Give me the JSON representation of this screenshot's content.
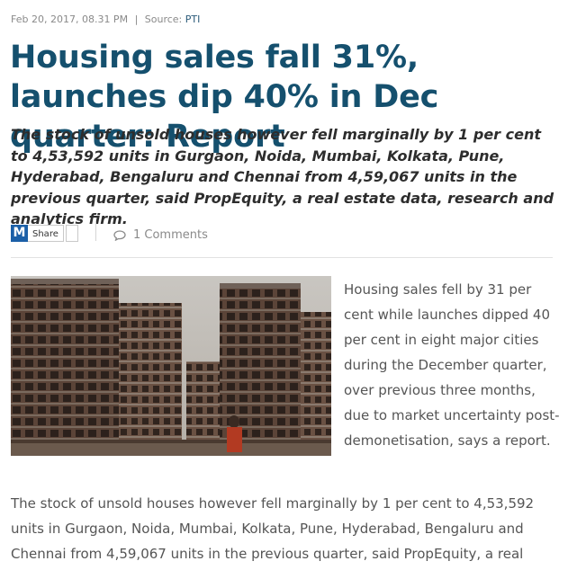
{
  "meta": {
    "date": "Feb 20, 2017, 08.31 PM",
    "separator": "|",
    "source_label": "Source:",
    "source": "PTI"
  },
  "headline": "Housing sales fall 31%, launches dip 40% in Dec quarter: Report",
  "summary": "The stock of unsold houses however fell marginally by 1 per cent to 4,53,592 units in Gurgaon, Noida, Mumbai, Kolkata, Pune, Hyderabad, Bengaluru and Chennai from 4,59,067 units in the previous quarter, said PropEquity, a real estate data, research and analytics firm.",
  "share": {
    "icon_letter": "M",
    "label": "Share"
  },
  "comments": {
    "icon": "comment-bubble-icon",
    "label": "1 Comments"
  },
  "photo": {
    "description_icon": "building-construction-photo"
  },
  "body": {
    "paragraph_1": "Housing sales fell by 31 per cent while launches dipped 40 per cent in eight major cities during the December quarter, over previous three months, due to market uncertainty post-demonetisation, says a report.",
    "paragraph_2": "The stock of unsold houses however fell marginally by 1 per cent to 4,53,592 units in Gurgaon, Noida, Mumbai, Kolkata, Pune, Hyderabad, Bengaluru and Chennai from 4,59,067 units in the previous quarter, said PropEquity, a real"
  },
  "colors": {
    "headline": "#15506e",
    "share_brand": "#1b5fa7",
    "body_text": "#555555"
  }
}
